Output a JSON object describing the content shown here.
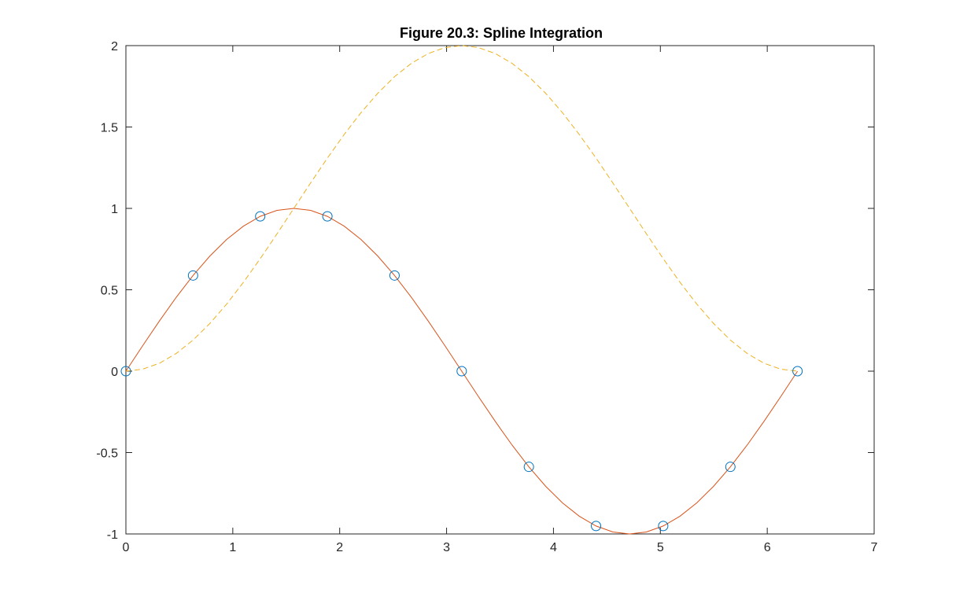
{
  "chart_data": {
    "type": "line",
    "title": "Figure 20.3: Spline Integration",
    "xlabel": "",
    "ylabel": "",
    "xlim": [
      0,
      7
    ],
    "ylim": [
      -1,
      2
    ],
    "xticks": [
      "0",
      "1",
      "2",
      "3",
      "4",
      "5",
      "6",
      "7"
    ],
    "yticks": [
      "-1",
      "-0.5",
      "0",
      "0.5",
      "1",
      "1.5",
      "2"
    ],
    "grid": false,
    "legend": "none",
    "series": [
      {
        "kind": "markers",
        "marker": "circle",
        "color": "#0072BD",
        "x": [
          0,
          0.6283,
          1.2566,
          1.885,
          2.5133,
          3.1416,
          3.7699,
          4.3982,
          5.0265,
          5.6549,
          6.2832
        ],
        "y": [
          0,
          0.5878,
          0.9511,
          0.9511,
          0.5878,
          0,
          -0.5878,
          -0.9511,
          -0.9511,
          -0.5878,
          0
        ]
      },
      {
        "kind": "line",
        "style": "solid",
        "color": "#D95319",
        "x": [
          0,
          0.1571,
          0.3142,
          0.4712,
          0.6283,
          0.7854,
          0.9425,
          1.0996,
          1.2566,
          1.4137,
          1.5708,
          1.7279,
          1.885,
          2.042,
          2.1991,
          2.3562,
          2.5133,
          2.6704,
          2.8274,
          2.9845,
          3.1416,
          3.2987,
          3.4558,
          3.6128,
          3.7699,
          3.927,
          4.0841,
          4.2412,
          4.3982,
          4.5553,
          4.7124,
          4.8695,
          5.0265,
          5.1836,
          5.3407,
          5.4978,
          5.6549,
          5.8119,
          5.969,
          6.1261,
          6.2832
        ],
        "y": [
          0,
          0.1564,
          0.309,
          0.454,
          0.5878,
          0.7071,
          0.809,
          0.891,
          0.9511,
          0.9877,
          1,
          0.9877,
          0.9511,
          0.891,
          0.809,
          0.7071,
          0.5878,
          0.454,
          0.309,
          0.1564,
          0,
          -0.1564,
          -0.309,
          -0.454,
          -0.5878,
          -0.7071,
          -0.809,
          -0.891,
          -0.9511,
          -0.9877,
          -1,
          -0.9877,
          -0.9511,
          -0.891,
          -0.809,
          -0.7071,
          -0.5878,
          -0.454,
          -0.309,
          -0.1564,
          0
        ]
      },
      {
        "kind": "line",
        "style": "dashed",
        "color": "#EDB120",
        "x": [
          0,
          0.1571,
          0.3142,
          0.4712,
          0.6283,
          0.7854,
          0.9425,
          1.0996,
          1.2566,
          1.4137,
          1.5708,
          1.7279,
          1.885,
          2.042,
          2.1991,
          2.3562,
          2.5133,
          2.6704,
          2.8274,
          2.9845,
          3.1416,
          3.2987,
          3.4558,
          3.6128,
          3.7699,
          3.927,
          4.0841,
          4.2412,
          4.3982,
          4.5553,
          4.7124,
          4.8695,
          5.0265,
          5.1836,
          5.3407,
          5.4978,
          5.6549,
          5.8119,
          5.969,
          6.1261,
          6.2832
        ],
        "y": [
          0,
          0.0123,
          0.0489,
          0.109,
          0.191,
          0.2929,
          0.4122,
          0.546,
          0.691,
          0.8436,
          1,
          1.1564,
          1.309,
          1.454,
          1.5878,
          1.7071,
          1.809,
          1.891,
          1.9511,
          1.9877,
          2,
          1.9877,
          1.9511,
          1.891,
          1.809,
          1.7071,
          1.5878,
          1.454,
          1.309,
          1.1564,
          1,
          0.8436,
          0.691,
          0.546,
          0.4122,
          0.2929,
          0.191,
          0.109,
          0.0489,
          0.0123,
          0
        ]
      }
    ]
  }
}
